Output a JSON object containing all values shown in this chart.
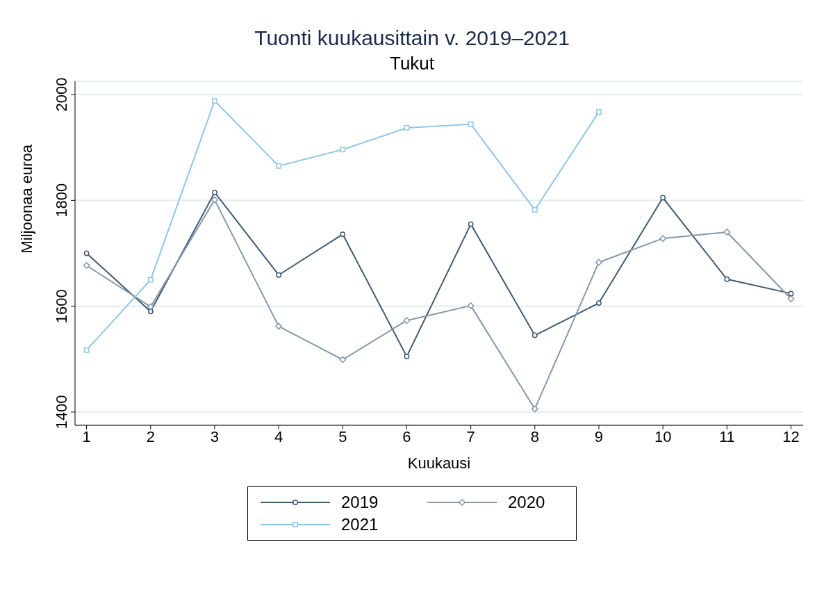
{
  "chart_data": {
    "type": "line",
    "title": "Tuonti kuukausittain v. 2019–2021",
    "subtitle": "Tukut",
    "xlabel": "Kuukausi",
    "ylabel": "Miljoonaa euroa",
    "x": [
      1,
      2,
      3,
      4,
      5,
      6,
      7,
      8,
      9,
      10,
      11,
      12
    ],
    "xlim": [
      0.82,
      12.19
    ],
    "xticks": [
      1,
      2,
      3,
      4,
      5,
      6,
      7,
      8,
      9,
      10,
      11,
      12
    ],
    "ylim": [
      1375,
      2025
    ],
    "yticks": [
      1400,
      1600,
      1800,
      2000
    ],
    "grid": "y",
    "legend": "bottom",
    "line_style": "solid",
    "series": [
      {
        "name": "2019",
        "color": "#3e5a73",
        "marker": "circle",
        "values": [
          1700,
          1590,
          1815,
          1659,
          1736,
          1505,
          1755,
          1545,
          1606,
          1805,
          1651,
          1624
        ]
      },
      {
        "name": "2020",
        "color": "#8497ab",
        "marker": "diamond",
        "values": [
          1677,
          1599,
          1801,
          1562,
          1499,
          1573,
          1601,
          1406,
          1683,
          1728,
          1740,
          1614
        ]
      },
      {
        "name": "2021",
        "color": "#8ec6e8",
        "marker": "square",
        "x": [
          1,
          2,
          3,
          4,
          5,
          6,
          7,
          8,
          9
        ],
        "values": [
          1517,
          1650,
          1988,
          1865,
          1896,
          1937,
          1944,
          1782,
          1967
        ]
      }
    ]
  }
}
